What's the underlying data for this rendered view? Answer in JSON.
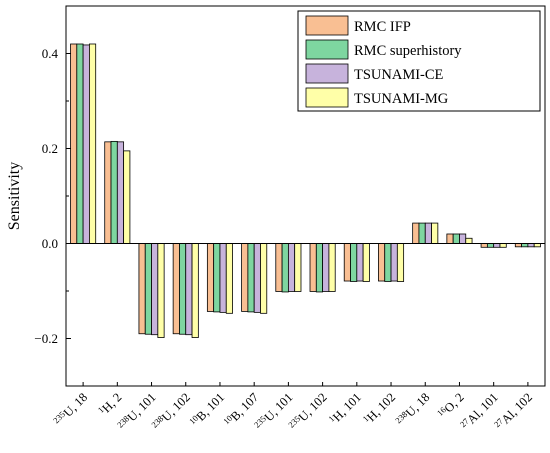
{
  "chart_data": {
    "type": "bar",
    "title": "",
    "xlabel": "",
    "ylabel": "Sensitivity",
    "ylim": [
      -0.3,
      0.5
    ],
    "yticks": [
      -0.2,
      0.0,
      0.2,
      0.4
    ],
    "ytick_labels": [
      "−0.2",
      "0.0",
      "0.2",
      "0.4"
    ],
    "grid": false,
    "legend_position": "top-right",
    "categories": [
      {
        "sup": "235",
        "text": "U, 18"
      },
      {
        "sup": "1",
        "text": "H, 2"
      },
      {
        "sup": "238",
        "text": "U, 101"
      },
      {
        "sup": "238",
        "text": "U, 102"
      },
      {
        "sup": "10",
        "text": "B, 101"
      },
      {
        "sup": "10",
        "text": "B, 107"
      },
      {
        "sup": "235",
        "text": "U, 101"
      },
      {
        "sup": "235",
        "text": "U, 102"
      },
      {
        "sup": "1",
        "text": "H, 101"
      },
      {
        "sup": "1",
        "text": "H, 102"
      },
      {
        "sup": "238",
        "text": "U, 18"
      },
      {
        "sup": "16",
        "text": "O, 2"
      },
      {
        "sup": "27",
        "text": "Al, 101"
      },
      {
        "sup": "27",
        "text": "Al, 102"
      }
    ],
    "series": [
      {
        "name": "RMC IFP",
        "color": "#F9BF93",
        "values": [
          0.42,
          0.214,
          -0.19,
          -0.19,
          -0.143,
          -0.143,
          -0.101,
          -0.101,
          -0.079,
          -0.079,
          0.043,
          0.02,
          -0.008,
          -0.007
        ]
      },
      {
        "name": "RMC superhistory",
        "color": "#7ED6A0",
        "values": [
          0.42,
          0.215,
          -0.191,
          -0.191,
          -0.144,
          -0.144,
          -0.102,
          -0.102,
          -0.08,
          -0.08,
          0.043,
          0.02,
          -0.008,
          -0.007
        ]
      },
      {
        "name": "TSUNAMI-CE",
        "color": "#C7B3DC",
        "values": [
          0.418,
          0.214,
          -0.192,
          -0.192,
          -0.145,
          -0.145,
          -0.101,
          -0.101,
          -0.079,
          -0.079,
          0.043,
          0.02,
          -0.008,
          -0.007
        ]
      },
      {
        "name": "TSUNAMI-MG",
        "color": "#FFFFA8",
        "values": [
          0.42,
          0.195,
          -0.198,
          -0.198,
          -0.147,
          -0.147,
          -0.101,
          -0.101,
          -0.08,
          -0.08,
          0.043,
          0.011,
          -0.008,
          -0.007
        ]
      }
    ]
  }
}
